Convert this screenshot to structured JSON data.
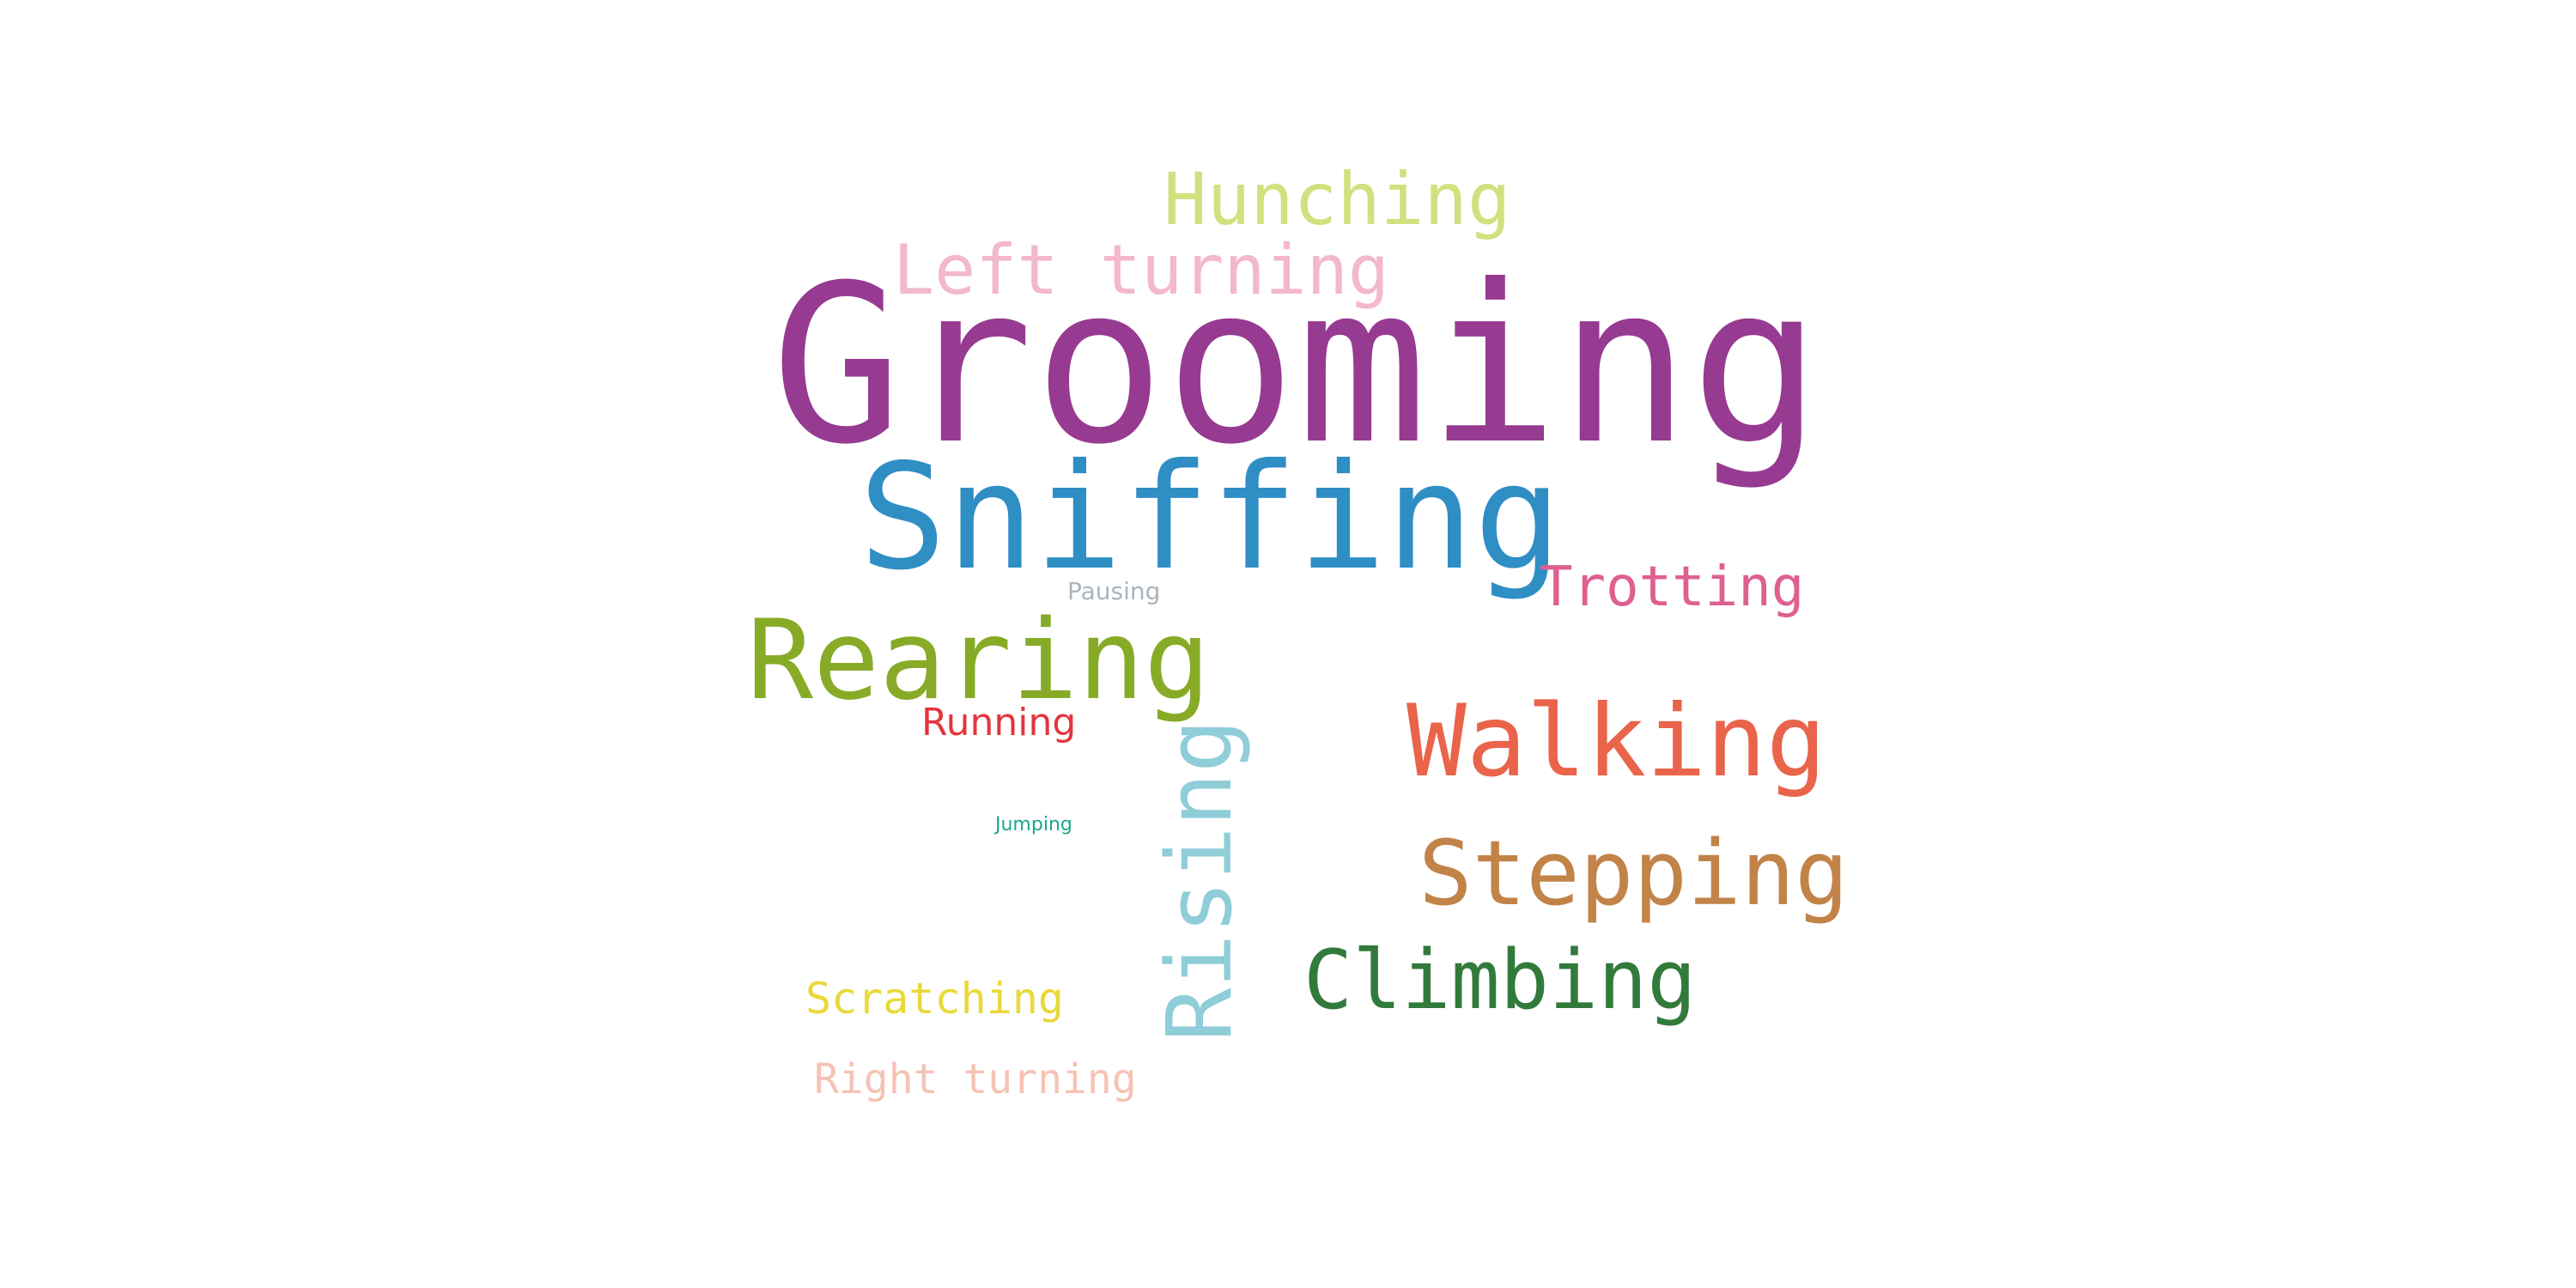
{
  "words": [
    {
      "text": "Grooming",
      "color": "#963b91"
    },
    {
      "text": "Sniffing",
      "color": "#2f8ec4"
    },
    {
      "text": "Rearing",
      "color": "#87ab27"
    },
    {
      "text": "Walking",
      "color": "#e9644a"
    },
    {
      "text": "Stepping",
      "color": "#c28349"
    },
    {
      "text": "Climbing",
      "color": "#327a3c"
    },
    {
      "text": "Rising",
      "color": "#8fcdd8"
    },
    {
      "text": "Hunching",
      "color": "#d2e07f"
    },
    {
      "text": "Left turning",
      "color": "#f3b8cc"
    },
    {
      "text": "Trotting",
      "color": "#df5f91"
    },
    {
      "text": "Scratching",
      "color": "#e8d93a"
    },
    {
      "text": "Right turning",
      "color": "#f5c3b5"
    },
    {
      "text": "Running",
      "color": "#e5343d"
    },
    {
      "text": "Pausing",
      "color": "#aab5bd"
    },
    {
      "text": "Jumping",
      "color": "#1aa889"
    }
  ]
}
